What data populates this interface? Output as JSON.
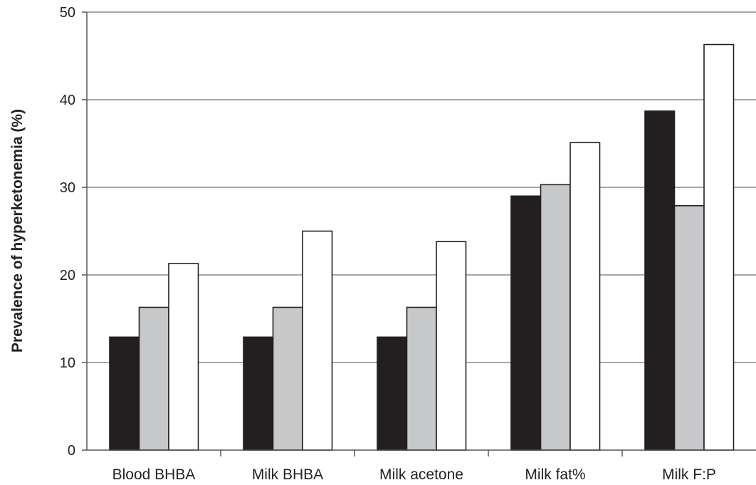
{
  "chart_data": {
    "type": "bar",
    "title": "",
    "xlabel": "",
    "ylabel": "Prevalence of hyperketonemia (%)",
    "ylim": [
      0,
      50
    ],
    "yticks": [
      "0",
      "10",
      "20",
      "30",
      "40",
      "50"
    ],
    "grid": true,
    "legend": "none",
    "categories": [
      "Blood BHBA",
      "Milk BHBA",
      "Milk acetone",
      "Milk fat%",
      "Milk F:P"
    ],
    "series": [
      {
        "values": [
          12.9,
          12.9,
          12.9,
          29.0,
          38.7
        ],
        "color": "#231f20"
      },
      {
        "values": [
          16.3,
          16.3,
          16.3,
          30.3,
          27.9
        ],
        "color": "#c6c8ca"
      },
      {
        "values": [
          21.3,
          25.0,
          23.8,
          35.1,
          46.3
        ],
        "color": "#ffffff"
      }
    ]
  }
}
